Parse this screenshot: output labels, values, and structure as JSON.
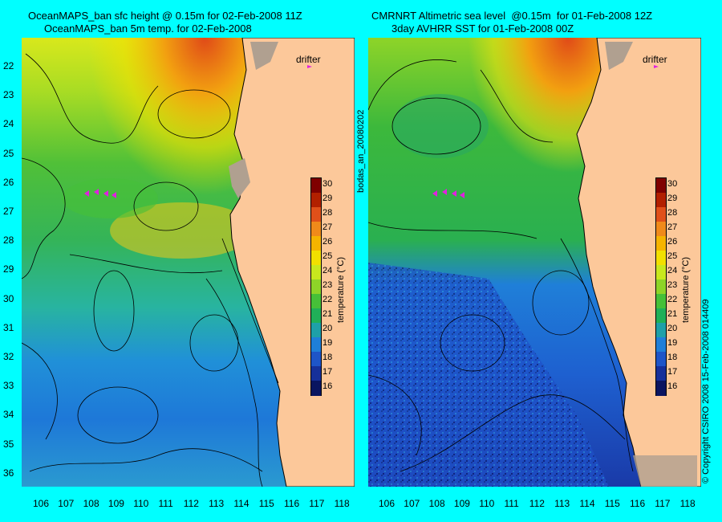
{
  "left_panel": {
    "title_line1": "OceanMAPS_ban sfc height @ 0.15m for 02-Feb-2008 11Z",
    "title_line2": "OceanMAPS_ban 5m temp. for 02-Feb-2008"
  },
  "right_panel": {
    "title_line1": "CMRNRT Altimetric sea level  @0.15m  for 01-Feb-2008 12Z",
    "title_line2": "3day AVHRR SST for 01-Feb-2008 00Z"
  },
  "drifter_label": "drifter",
  "side_label": "bodas_an_20080202",
  "colorbar": {
    "label": "temperature (°C)",
    "ticks": [
      "30",
      "29",
      "28",
      "27",
      "26",
      "25",
      "24",
      "23",
      "22",
      "21",
      "20",
      "19",
      "18",
      "17",
      "16"
    ],
    "colors": [
      "#7f0000",
      "#b22000",
      "#e0501a",
      "#f08a1a",
      "#f5b400",
      "#f2e000",
      "#c8e81e",
      "#8ed428",
      "#46c038",
      "#20b058",
      "#1ea0a8",
      "#1f7fd8",
      "#1e55c8",
      "#16309a",
      "#0a1560"
    ]
  },
  "y_axis_ticks": [
    "22",
    "23",
    "24",
    "25",
    "26",
    "27",
    "28",
    "29",
    "30",
    "31",
    "32",
    "33",
    "34",
    "35",
    "36"
  ],
  "x_axis_ticks": [
    "106",
    "107",
    "108",
    "109",
    "110",
    "111",
    "112",
    "113",
    "114",
    "115",
    "116",
    "117",
    "118"
  ],
  "copyright": "© Copyright CSIRO 2008   15-Feb-2008 014409",
  "colors": {
    "background": "#00ffff",
    "land": "#fcc89a",
    "drifter": "#e020e0"
  }
}
